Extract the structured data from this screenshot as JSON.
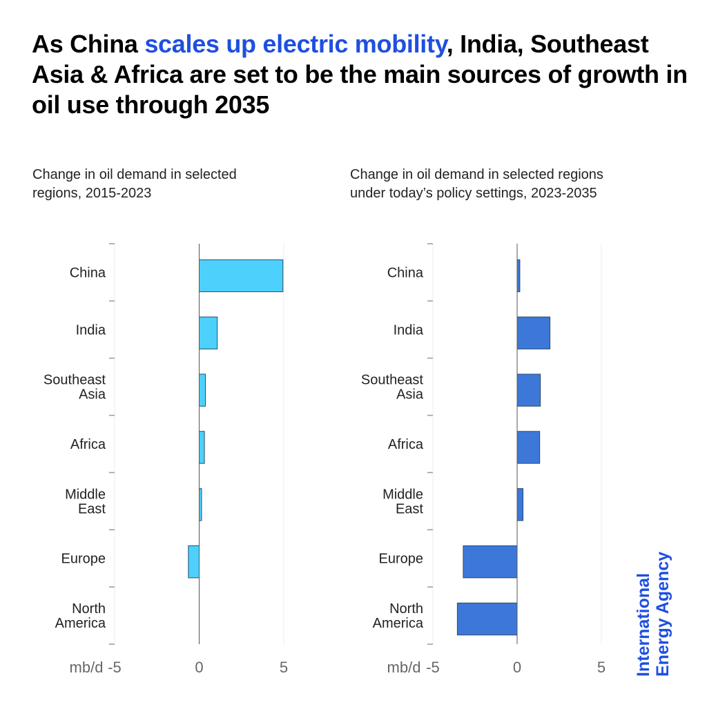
{
  "headline": {
    "prefix": "As China ",
    "highlight": "scales up electric mobility",
    "suffix": ", India, Southeast Asia & Africa are set to be the main sources of growth in oil use through 2035"
  },
  "colors": {
    "highlight": "#1f4fe0",
    "left_bar": "#4dd0fb",
    "right_bar": "#3d78d8",
    "bar_stroke": "#2c4a66",
    "logo": "#1f4fe0"
  },
  "logo": {
    "line1": "International",
    "line2": "Energy Agency"
  },
  "chart_data": [
    {
      "type": "bar",
      "orientation": "horizontal",
      "title": "Change in oil demand in selected regions, 2015-2023",
      "xlabel": "mb/d",
      "ylabel": "",
      "categories": [
        [
          "China"
        ],
        [
          "India"
        ],
        [
          "Southeast",
          "Asia"
        ],
        [
          "Africa"
        ],
        [
          "Middle",
          "East"
        ],
        [
          "Europe"
        ],
        [
          "North",
          "America"
        ]
      ],
      "values": [
        4.95,
        1.07,
        0.37,
        0.31,
        0.14,
        -0.64,
        0.0
      ],
      "xlim": [
        -5,
        5
      ],
      "xticks": [
        -5,
        0,
        5
      ],
      "xtick_labels": [
        "-5",
        "0",
        "5"
      ],
      "grid": true,
      "color": "#4dd0fb"
    },
    {
      "type": "bar",
      "orientation": "horizontal",
      "title": "Change in oil demand in selected regions under today’s policy settings, 2023-2035",
      "xlabel": "mb/d",
      "ylabel": "",
      "categories": [
        [
          "China"
        ],
        [
          "India"
        ],
        [
          "Southeast",
          "Asia"
        ],
        [
          "Africa"
        ],
        [
          "Middle",
          "East"
        ],
        [
          "Europe"
        ],
        [
          "North",
          "America"
        ]
      ],
      "values": [
        0.16,
        1.95,
        1.38,
        1.34,
        0.35,
        -3.2,
        -3.55
      ],
      "xlim": [
        -5,
        5
      ],
      "xticks": [
        -5,
        0,
        5
      ],
      "xtick_labels": [
        "-5",
        "0",
        "5"
      ],
      "grid": true,
      "color": "#3d78d8"
    }
  ]
}
